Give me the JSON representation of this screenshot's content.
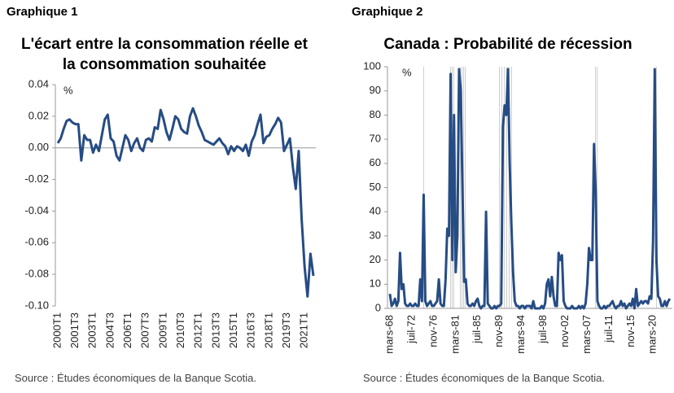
{
  "chart_data": [
    {
      "type": "line",
      "label": "Graphique 1",
      "title": "L'écart entre la consommation réelle et la consommation souhaitée",
      "ylabel": "%",
      "source": "Source : Études économiques de la Banque Scotia.",
      "color": "#264c84",
      "categories": [
        "2000T1",
        null,
        null,
        null,
        null,
        null,
        "2001T3",
        null,
        null,
        null,
        null,
        null,
        "2003T1",
        null,
        null,
        null,
        null,
        null,
        "2004T3",
        null,
        null,
        null,
        null,
        null,
        "2006T1",
        null,
        null,
        null,
        null,
        null,
        "2007T3",
        null,
        null,
        null,
        null,
        null,
        "2009T1",
        null,
        null,
        null,
        null,
        null,
        "2010T3",
        null,
        null,
        null,
        null,
        null,
        "2012T1",
        null,
        null,
        null,
        null,
        null,
        "2013T3",
        null,
        null,
        null,
        null,
        null,
        "2015T1",
        null,
        null,
        null,
        null,
        null,
        "2016T3",
        null,
        null,
        null,
        null,
        null,
        "2018T1",
        null,
        null,
        null,
        null,
        null,
        "2019T3",
        null,
        null,
        null,
        null,
        null,
        "2021T1",
        null,
        null,
        null
      ],
      "values": [
        0.003,
        0.006,
        0.012,
        0.017,
        0.018,
        0.016,
        0.015,
        0.015,
        -0.008,
        0.008,
        0.005,
        0.005,
        -0.003,
        0.002,
        -0.002,
        0.008,
        0.018,
        0.021,
        0.006,
        0.004,
        -0.005,
        -0.008,
        0.0,
        0.008,
        0.005,
        -0.002,
        0.003,
        0.006,
        0.0,
        -0.002,
        0.005,
        0.006,
        0.004,
        0.013,
        0.012,
        0.024,
        0.018,
        0.01,
        0.005,
        0.012,
        0.02,
        0.018,
        0.012,
        0.01,
        0.009,
        0.02,
        0.025,
        0.02,
        0.014,
        0.01,
        0.005,
        0.004,
        0.003,
        0.002,
        0.004,
        0.006,
        0.003,
        0.001,
        -0.004,
        0.001,
        -0.002,
        0.001,
        0.0,
        -0.002,
        0.002,
        -0.005,
        0.004,
        0.008,
        0.015,
        0.021,
        0.003,
        0.007,
        0.008,
        0.012,
        0.015,
        0.019,
        0.016,
        -0.002,
        0.002,
        0.006,
        -0.012,
        -0.026,
        -0.002,
        -0.045,
        -0.075,
        -0.094,
        -0.067,
        -0.081
      ],
      "ylim": [
        -0.1,
        0.04
      ],
      "yticks": [
        0.04,
        0.02,
        {
          "value": 0,
          "label": "0.00"
        },
        -0.02,
        -0.04,
        -0.06,
        -0.08,
        {
          "value": -0.1,
          "label": "-0.10"
        }
      ]
    },
    {
      "type": "line",
      "label": "Graphique 2",
      "title": "Canada : Probabilité de récession",
      "ylabel": "%",
      "source": "Source : Études économiques de la Banque Scotia.",
      "color": "#264c84",
      "categories": [
        "mars-68",
        null,
        null,
        null,
        null,
        null,
        null,
        null,
        null,
        null,
        null,
        null,
        null,
        "juil-72",
        null,
        null,
        null,
        null,
        null,
        null,
        null,
        null,
        null,
        null,
        null,
        null,
        "nov-76",
        null,
        null,
        null,
        null,
        null,
        null,
        null,
        null,
        null,
        null,
        null,
        null,
        "mars-81",
        null,
        null,
        null,
        null,
        null,
        null,
        null,
        null,
        null,
        null,
        null,
        null,
        "juil-85",
        null,
        null,
        null,
        null,
        null,
        null,
        null,
        null,
        null,
        null,
        null,
        null,
        "nov-89",
        null,
        null,
        null,
        null,
        null,
        null,
        null,
        null,
        null,
        null,
        null,
        null,
        "mars-94",
        null,
        null,
        null,
        null,
        null,
        null,
        null,
        null,
        null,
        null,
        null,
        null,
        "juil-98",
        null,
        null,
        null,
        null,
        null,
        null,
        null,
        null,
        null,
        null,
        null,
        null,
        "nov-02",
        null,
        null,
        null,
        null,
        null,
        null,
        null,
        null,
        null,
        null,
        null,
        null,
        "mars-07",
        null,
        null,
        null,
        null,
        null,
        null,
        null,
        null,
        null,
        null,
        null,
        null,
        "juil-11",
        null,
        null,
        null,
        null,
        null,
        null,
        null,
        null,
        null,
        null,
        null,
        null,
        "nov-15",
        null,
        null,
        null,
        null,
        null,
        null,
        null,
        null,
        null,
        null,
        null,
        null,
        "mars-20",
        null,
        null,
        null,
        null,
        null,
        null,
        null,
        null,
        null,
        null
      ],
      "values": [
        6,
        1,
        2,
        4,
        1,
        3,
        23,
        8,
        10,
        2,
        1,
        1,
        2,
        1,
        1,
        2,
        1,
        1,
        12,
        3,
        47,
        3,
        1,
        2,
        3,
        1,
        1,
        2,
        3,
        12,
        2,
        1,
        1,
        12,
        33,
        30,
        97,
        20,
        80,
        15,
        30,
        99,
        90,
        50,
        11,
        12,
        2,
        1,
        1,
        2,
        1,
        3,
        4,
        1,
        0,
        1,
        1,
        40,
        2,
        1,
        0,
        0,
        1,
        0,
        1,
        1,
        2,
        75,
        84,
        80,
        99,
        60,
        35,
        15,
        3,
        1,
        1,
        0,
        1,
        1,
        0,
        1,
        1,
        1,
        0,
        3,
        0,
        0,
        0,
        0,
        1,
        0,
        2,
        10,
        12,
        5,
        13,
        5,
        1,
        1,
        23,
        20,
        22,
        3,
        1,
        0,
        0,
        0,
        1,
        0,
        0,
        0,
        1,
        0,
        1,
        0,
        2,
        10,
        25,
        20,
        20,
        68,
        48,
        3,
        1,
        0,
        0,
        1,
        0,
        1,
        1,
        2,
        3,
        1,
        0,
        1,
        1,
        3,
        1,
        2,
        0,
        1,
        2,
        1,
        4,
        0,
        8,
        1,
        2,
        3,
        2,
        3,
        3,
        2,
        5,
        4,
        28,
        99,
        20,
        5,
        4,
        1,
        1,
        3,
        1,
        3,
        4
      ],
      "ylim": [
        0,
        100
      ],
      "yticks": [
        0,
        10,
        20,
        30,
        40,
        50,
        60,
        70,
        80,
        90,
        100
      ]
    }
  ]
}
